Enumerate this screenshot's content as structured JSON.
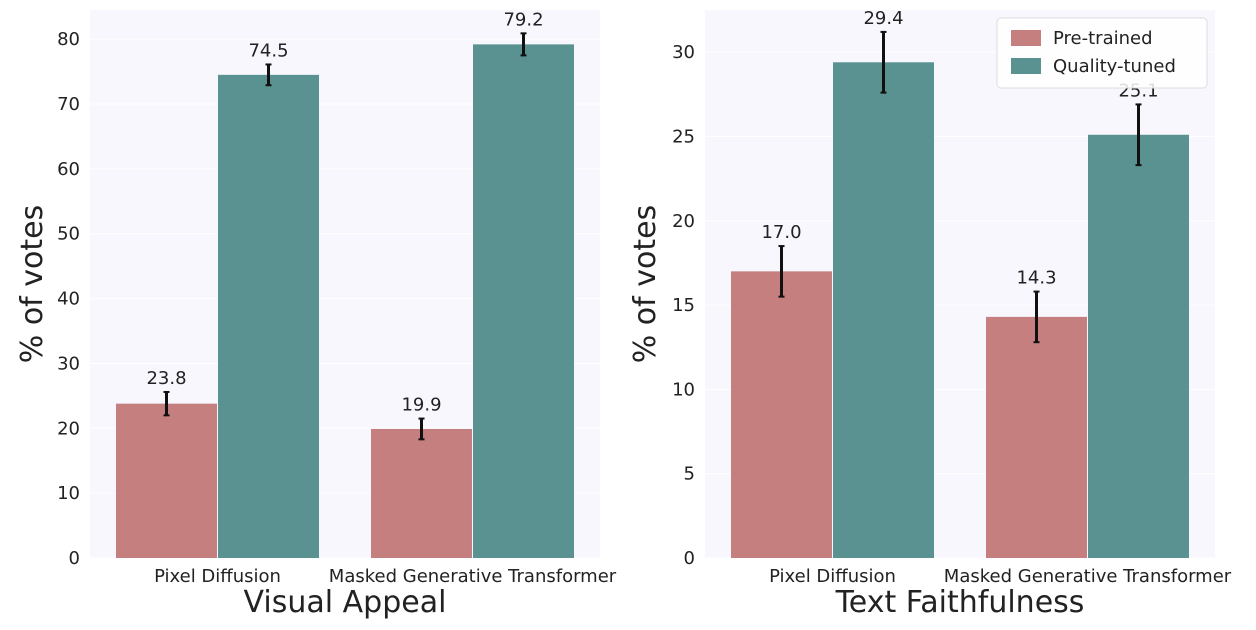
{
  "figure": {
    "background": "#ffffff",
    "plot_background": "#f7f7fd",
    "grid_color": "#ffffff",
    "colors": {
      "Pre-trained": "#c47f7e",
      "Quality-tuned": "#5a9292"
    }
  },
  "legend": {
    "placement": "top-right",
    "panel": 1,
    "entries": [
      "Pre-trained",
      "Quality-tuned"
    ]
  },
  "chart_data": [
    {
      "type": "bar",
      "categories": [
        "Pixel Diffusion",
        "Masked Generative Transformer"
      ],
      "series": [
        {
          "name": "Pre-trained",
          "values": [
            23.8,
            19.9
          ],
          "errors": [
            1.8,
            1.6
          ]
        },
        {
          "name": "Quality-tuned",
          "values": [
            74.5,
            79.2
          ],
          "errors": [
            1.6,
            1.7
          ]
        }
      ],
      "xlabel": "Visual Appeal",
      "ylabel": "% of votes",
      "ylim": [
        0,
        84.5
      ],
      "yticks": [
        0,
        10,
        20,
        30,
        40,
        50,
        60,
        70,
        80
      ],
      "grid": true,
      "data_labels": true
    },
    {
      "type": "bar",
      "categories": [
        "Pixel Diffusion",
        "Masked Generative Transformer"
      ],
      "series": [
        {
          "name": "Pre-trained",
          "values": [
            17.0,
            14.3
          ],
          "errors": [
            1.5,
            1.5
          ]
        },
        {
          "name": "Quality-tuned",
          "values": [
            29.4,
            25.1
          ],
          "errors": [
            1.8,
            1.8
          ]
        }
      ],
      "xlabel": "Text Faithfulness",
      "ylabel": "% of votes",
      "ylim": [
        0,
        32.5
      ],
      "yticks": [
        0,
        5,
        10,
        15,
        20,
        25,
        30
      ],
      "grid": true,
      "data_labels": true
    }
  ]
}
